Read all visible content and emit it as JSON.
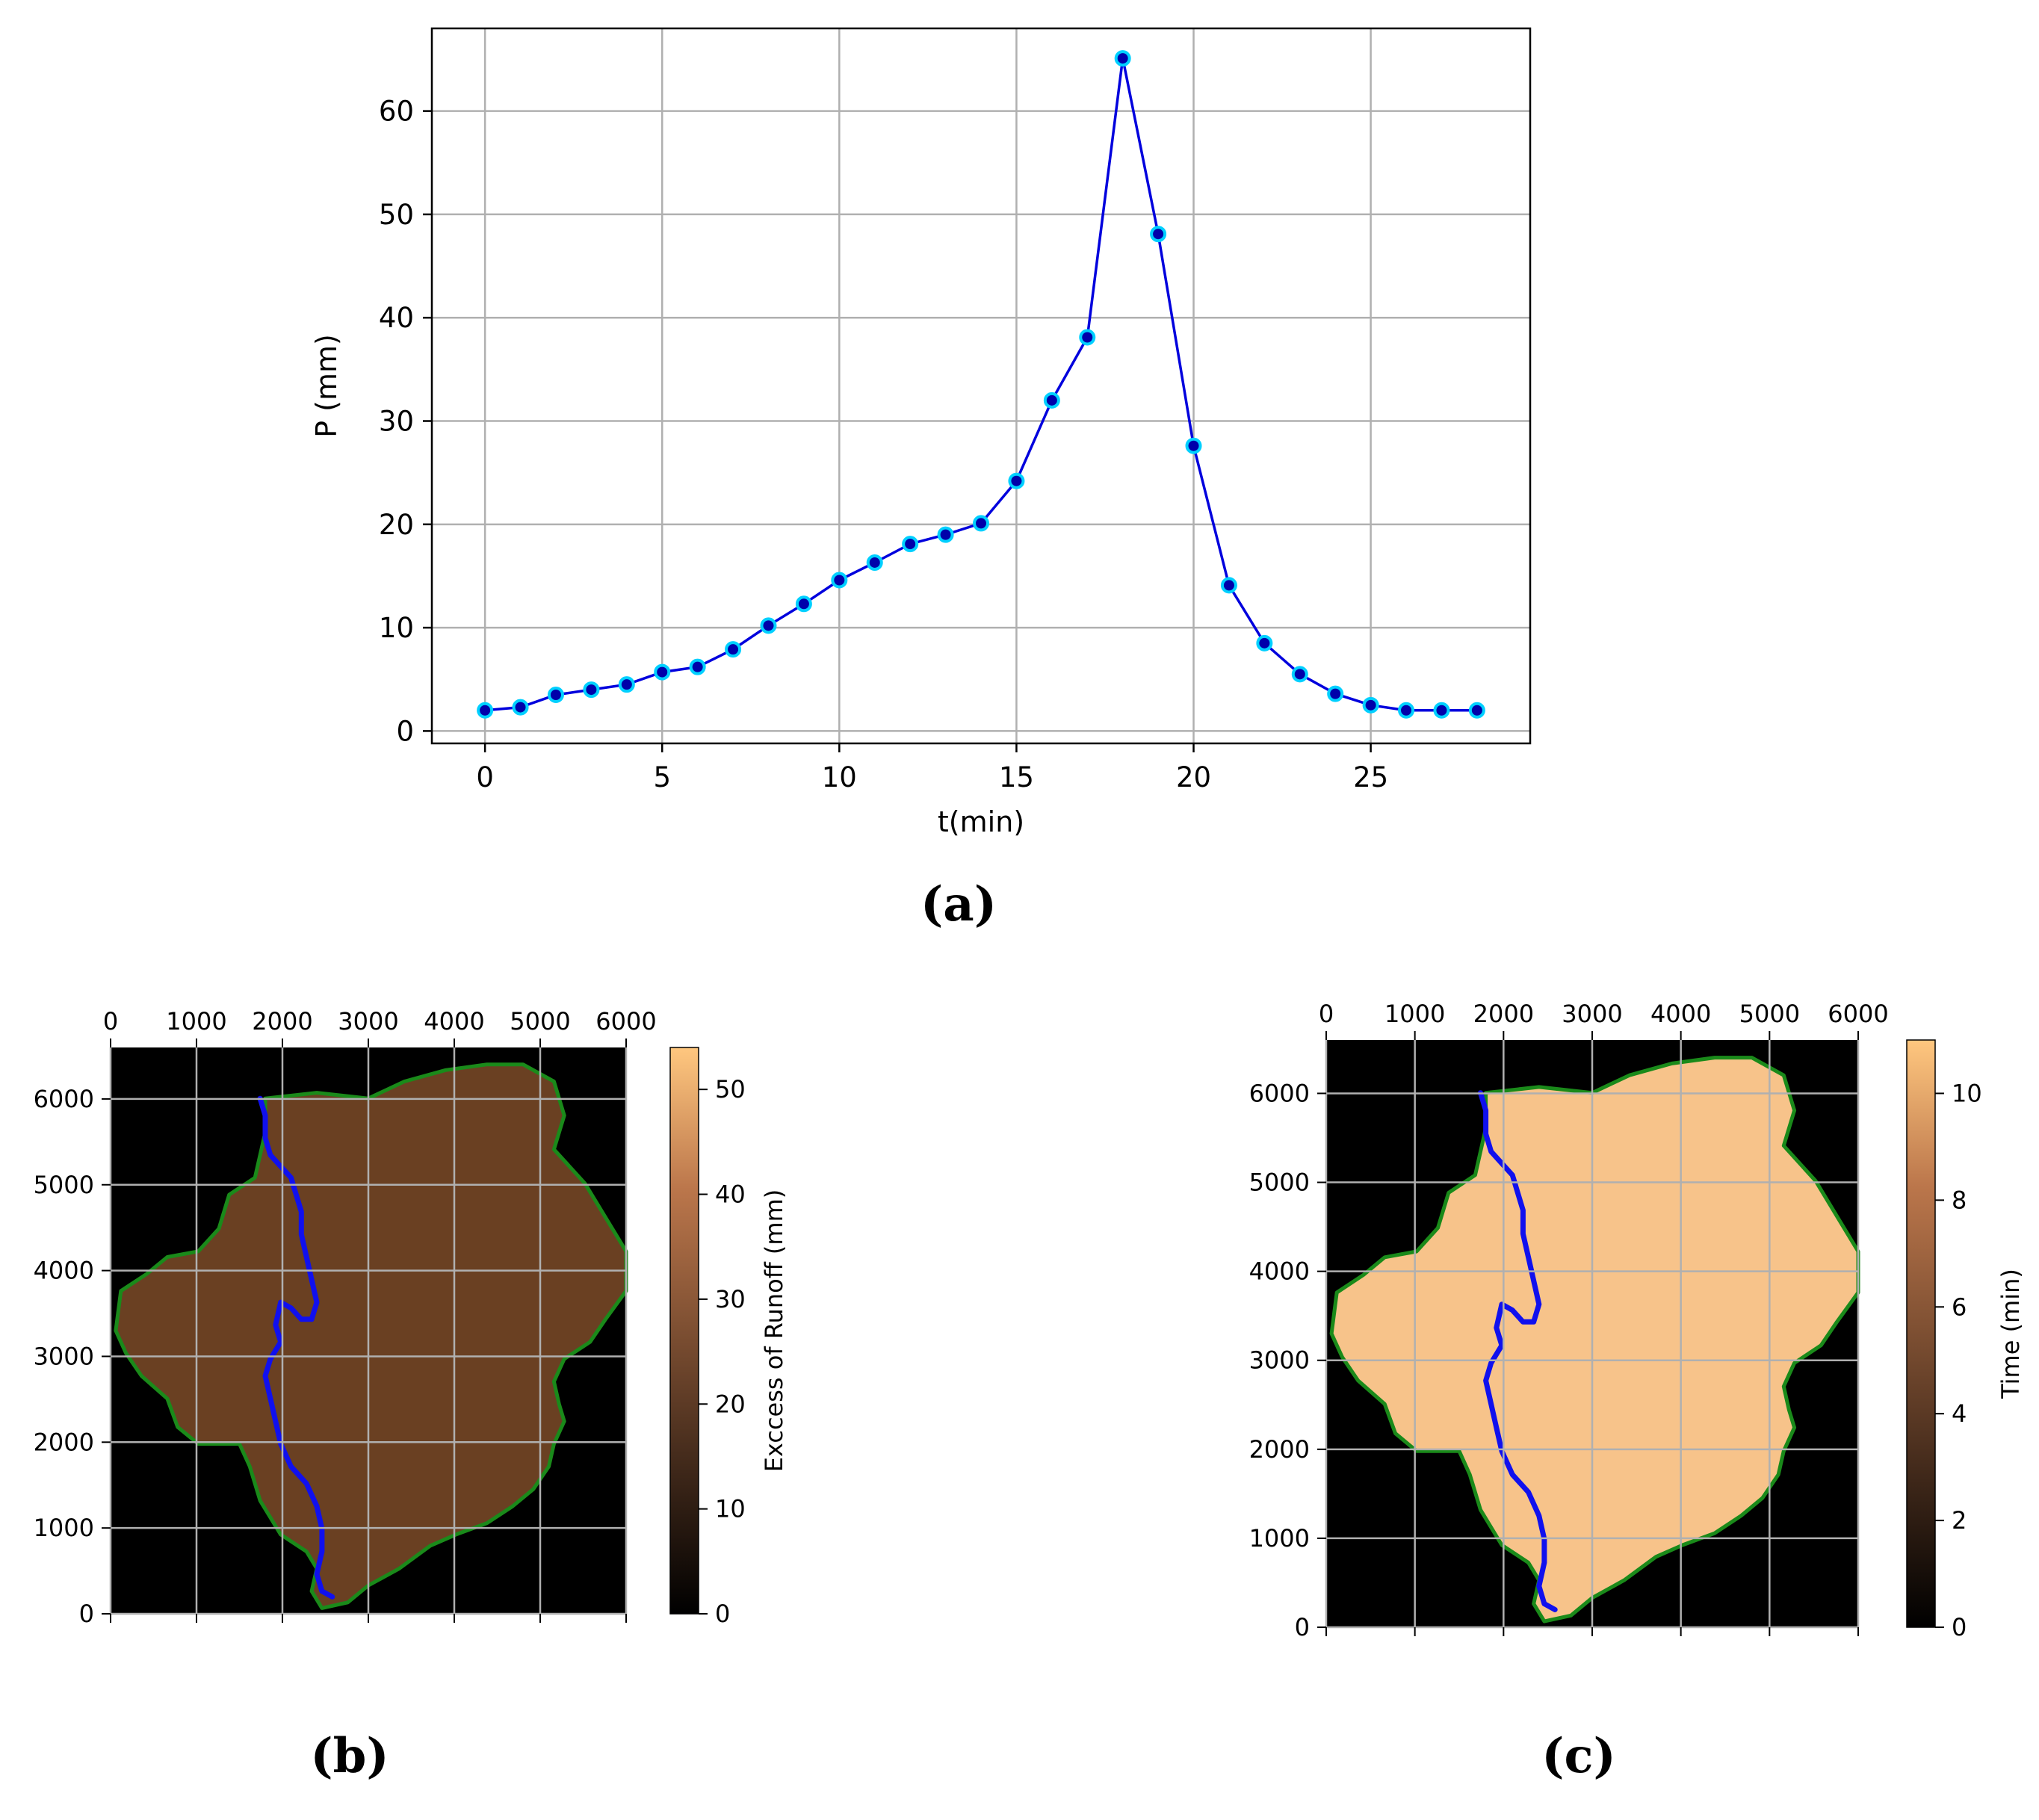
{
  "panels": {
    "a": "(a)",
    "b": "(b)",
    "c": "(c)"
  },
  "chart_data": [
    {
      "type": "line",
      "panel": "a",
      "title": "",
      "xlabel": "t(min)",
      "ylabel": "P (mm)",
      "xlim": [
        -1.5,
        29.5
      ],
      "ylim": [
        -1.2,
        68
      ],
      "xticks": [
        0,
        5,
        10,
        15,
        20,
        25
      ],
      "yticks": [
        0,
        10,
        20,
        30,
        40,
        50,
        60
      ],
      "grid": true,
      "line_color": "#0000dd",
      "marker_color": "#00d0ff",
      "marker_edge": "#0000aa",
      "x": [
        0,
        1,
        2,
        3,
        4,
        5,
        6,
        7,
        8,
        9,
        10,
        11,
        12,
        13,
        14,
        15,
        16,
        17,
        18,
        19,
        20,
        21,
        22,
        23,
        24,
        25,
        26,
        27,
        28
      ],
      "y": [
        2.0,
        2.3,
        3.5,
        4.0,
        4.5,
        5.7,
        6.2,
        7.9,
        10.2,
        12.3,
        14.6,
        16.3,
        18.1,
        19.0,
        20.1,
        24.2,
        32.0,
        38.1,
        65.1,
        48.1,
        27.6,
        14.1,
        8.5,
        5.5,
        3.6,
        2.5,
        2.0,
        2.0,
        2.0
      ]
    },
    {
      "type": "heatmap",
      "panel": "b",
      "xlim": [
        0,
        6000
      ],
      "ylim": [
        0,
        6600
      ],
      "xticks": [
        0,
        1000,
        2000,
        3000,
        4000,
        5000,
        6000
      ],
      "yticks": [
        0,
        1000,
        2000,
        3000,
        4000,
        5000,
        6000
      ],
      "grid": true,
      "x_axis_position": "top",
      "background_color": "#000000",
      "fill_color": "#6a4022",
      "boundary_color": "#1a8a1a",
      "river_color": "#1010ee",
      "colorbar": {
        "label": "Exccess of Runoff (mm)",
        "min": 0,
        "max": 54,
        "ticks": [
          0,
          10,
          20,
          30,
          40,
          50
        ],
        "colormap": "copper"
      }
    },
    {
      "type": "heatmap",
      "panel": "c",
      "xlim": [
        0,
        6000
      ],
      "ylim": [
        0,
        6600
      ],
      "xticks": [
        0,
        1000,
        2000,
        3000,
        4000,
        5000,
        6000
      ],
      "yticks": [
        0,
        1000,
        2000,
        3000,
        4000,
        5000,
        6000
      ],
      "grid": true,
      "x_axis_position": "top",
      "background_color": "#000000",
      "fill_color": "#f7c38a",
      "boundary_color": "#1a8a1a",
      "river_color": "#1010ee",
      "colorbar": {
        "label": "Time (min)",
        "min": 0,
        "max": 11,
        "ticks": [
          0,
          2,
          4,
          6,
          8,
          10
        ],
        "colormap": "copper"
      }
    }
  ]
}
